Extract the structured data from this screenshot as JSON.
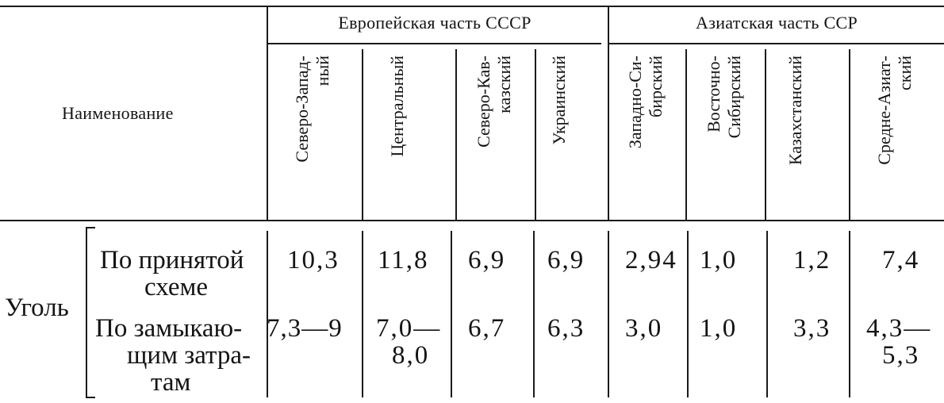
{
  "table": {
    "row_header_title": "Наименование",
    "groups": [
      {
        "label": "Европейская часть СССР"
      },
      {
        "label": "Азиатская часть ССР"
      }
    ],
    "columns": [
      {
        "label": "Северо-Запад-\nный"
      },
      {
        "label": "Центральный"
      },
      {
        "label": "Северо-Кав-\nказский"
      },
      {
        "label": "Украинский"
      },
      {
        "label": "Западно-Си-\nбирский"
      },
      {
        "label": "Восточно-\nСибирский"
      },
      {
        "label": "Казахстанский"
      },
      {
        "label": "Средне-Азиат-\nский"
      }
    ],
    "category": "Уголь",
    "rows": [
      {
        "label_lines": [
          "По принятой",
          "схеме"
        ],
        "cells": [
          [
            "10,3"
          ],
          [
            "11,8"
          ],
          [
            "6,9"
          ],
          [
            "6,9"
          ],
          [
            "2,94"
          ],
          [
            "1,0"
          ],
          [
            "1,2"
          ],
          [
            "7,4"
          ]
        ]
      },
      {
        "label_lines": [
          "По замыкаю-",
          "щим затра-",
          "там"
        ],
        "cells": [
          [
            "7,3—9"
          ],
          [
            "7,0—",
            "8,0"
          ],
          [
            "6,7"
          ],
          [
            "6,3"
          ],
          [
            "3,0"
          ],
          [
            "1,0"
          ],
          [
            "3,3"
          ],
          [
            "4,3—",
            "5,3"
          ]
        ]
      }
    ]
  }
}
